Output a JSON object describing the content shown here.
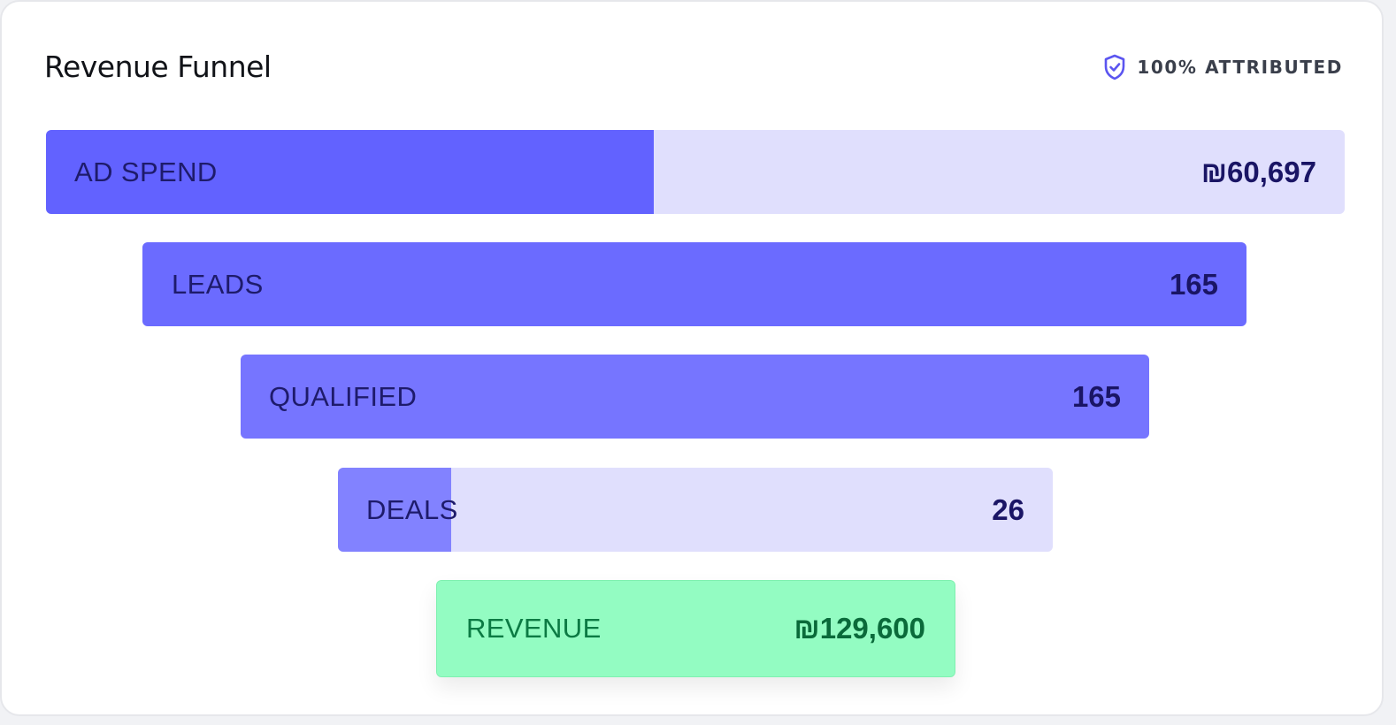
{
  "card": {
    "title": "Revenue Funnel",
    "badge": {
      "label": "100% ATTRIBUTED",
      "icon": "shield-check-icon"
    }
  },
  "chart_data": {
    "type": "bar",
    "title": "Revenue Funnel",
    "categories": [
      "AD SPEND",
      "LEADS",
      "QUALIFIED",
      "DEALS",
      "REVENUE"
    ],
    "values": [
      60697,
      165,
      165,
      26,
      129600
    ],
    "stages": [
      {
        "label": "AD SPEND",
        "value": "₪60,697",
        "fill_fraction": 0.468,
        "fill_color": "#6262ff"
      },
      {
        "label": "LEADS",
        "value": "165",
        "fill_fraction": 1.0,
        "fill_color": "#6b6bff"
      },
      {
        "label": "QUALIFIED",
        "value": "165",
        "fill_fraction": 1.0,
        "fill_color": "#7675ff"
      },
      {
        "label": "DEALS",
        "value": "26",
        "fill_fraction": 0.158,
        "fill_color": "#8282ff"
      },
      {
        "label": "REVENUE",
        "value": "₪129,600",
        "fill_fraction": 1.0,
        "fill_color": "#93fcc2"
      }
    ],
    "track_color": "#e0dffd",
    "revenue_color": "#93fcc2"
  }
}
